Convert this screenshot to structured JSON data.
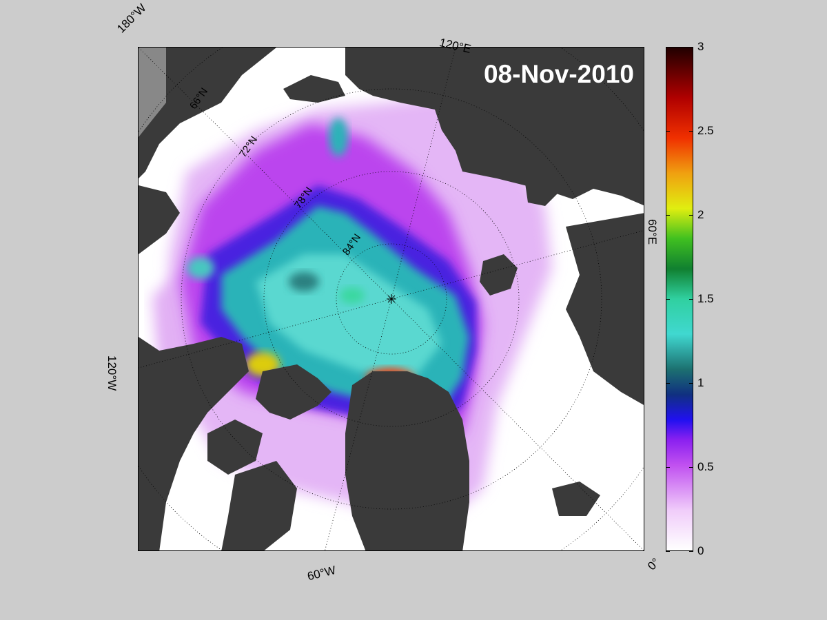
{
  "date": "08-Nov-2010",
  "longitude_labels": {
    "w180": "180°W",
    "e120": "120°E",
    "e60": "60°E",
    "w120": "120°W",
    "w60": "60°W",
    "zero": "0°"
  },
  "latitude_labels": {
    "n66": "66°N",
    "n72": "72°N",
    "n78": "78°N",
    "n84": "84°N"
  },
  "colorbar": {
    "ticks": [
      "0",
      "0.5",
      "1",
      "1.5",
      "2",
      "2.5",
      "3"
    ],
    "min": 0,
    "max": 3
  },
  "colors": {
    "land": "#3a3a3a",
    "background": "#cccccc",
    "open_water": "#ffffff"
  }
}
